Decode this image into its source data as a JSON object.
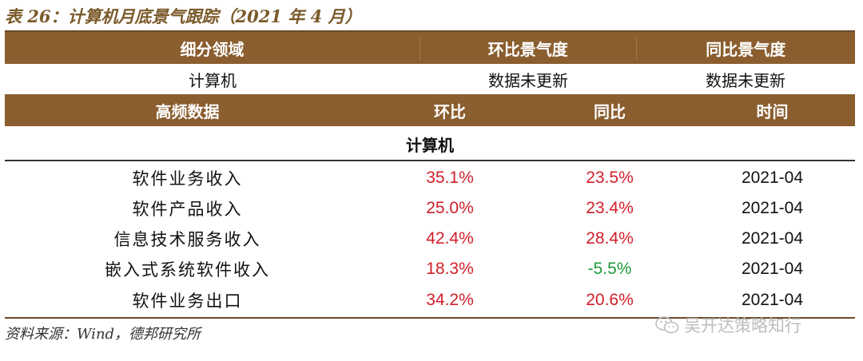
{
  "caption": "表 26：计算机月底景气跟踪（2021 年 4 月）",
  "summary_header": [
    "细分领域",
    "环比景气度",
    "同比景气度"
  ],
  "summary_row": [
    "计算机",
    "数据未更新",
    "数据未更新"
  ],
  "data_header": [
    "高频数据",
    "环比",
    "同比",
    "时间"
  ],
  "section_title": "计算机",
  "rows": [
    {
      "name": "软件业务收入",
      "mom": "35.1%",
      "yoy": "23.5%",
      "date": "2021-04"
    },
    {
      "name": "软件产品收入",
      "mom": "25.0%",
      "yoy": "23.4%",
      "date": "2021-04"
    },
    {
      "name": "信息技术服务收入",
      "mom": "42.4%",
      "yoy": "28.4%",
      "date": "2021-04"
    },
    {
      "name": "嵌入式系统软件收入",
      "mom": "18.3%",
      "yoy": "-5.5%",
      "date": "2021-04"
    },
    {
      "name": "软件业务出口",
      "mom": "34.2%",
      "yoy": "20.6%",
      "date": "2021-04"
    }
  ],
  "colors": {
    "header_bg": "#8b5e2f",
    "positive": "#d11f2a",
    "negative": "#1f9a3a"
  },
  "source": "资料来源：Wind，德邦研究所",
  "watermark": "吴开达策略知行",
  "watermark_icon": "wechat-icon"
}
